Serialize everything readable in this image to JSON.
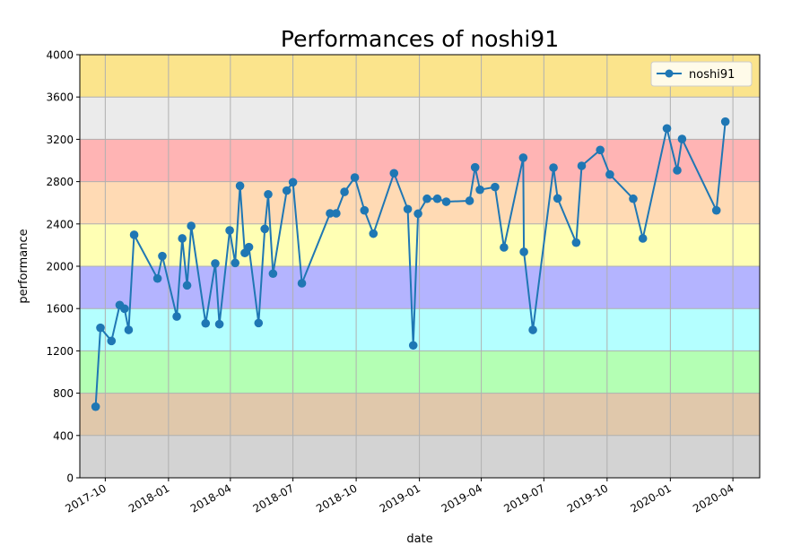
{
  "chart_data": {
    "type": "line",
    "title": "Performances of noshi91",
    "xlabel": "date",
    "ylabel": "performance",
    "ylim": [
      0,
      4000
    ],
    "xlim": [
      "2017-08-25",
      "2020-05-10"
    ],
    "grid": true,
    "legend_position": "top-right",
    "y_ticks": [
      0,
      400,
      800,
      1200,
      1600,
      2000,
      2400,
      2800,
      3200,
      3600,
      4000
    ],
    "x_ticks": [
      "2017-10",
      "2018-01",
      "2018-04",
      "2018-07",
      "2018-10",
      "2019-01",
      "2019-04",
      "2019-07",
      "2019-10",
      "2020-01",
      "2020-04"
    ],
    "bands": [
      {
        "from": 0,
        "to": 400,
        "color": "#d3d3d3"
      },
      {
        "from": 400,
        "to": 800,
        "color": "#e0c8ab"
      },
      {
        "from": 800,
        "to": 1200,
        "color": "#b4ffb4"
      },
      {
        "from": 1200,
        "to": 1600,
        "color": "#b4ffff"
      },
      {
        "from": 1600,
        "to": 2000,
        "color": "#b4b4ff"
      },
      {
        "from": 2000,
        "to": 2400,
        "color": "#ffffb4"
      },
      {
        "from": 2400,
        "to": 2800,
        "color": "#ffdab4"
      },
      {
        "from": 2800,
        "to": 3200,
        "color": "#ffb4b4"
      },
      {
        "from": 3200,
        "to": 3600,
        "color": "#ebebeb"
      },
      {
        "from": 3600,
        "to": 4000,
        "color": "#fbe48c"
      }
    ],
    "series": [
      {
        "name": "noshi91",
        "color": "#1f77b4",
        "x": [
          "2017-09-17",
          "2017-09-24",
          "2017-10-10",
          "2017-10-22",
          "2017-10-29",
          "2017-11-04",
          "2017-11-12",
          "2017-12-16",
          "2017-12-23",
          "2018-01-13",
          "2018-01-21",
          "2018-01-28",
          "2018-02-03",
          "2018-02-24",
          "2018-03-10",
          "2018-03-16",
          "2018-03-31",
          "2018-04-08",
          "2018-04-15",
          "2018-04-22",
          "2018-04-28",
          "2018-05-12",
          "2018-05-21",
          "2018-05-26",
          "2018-06-02",
          "2018-06-22",
          "2018-07-01",
          "2018-07-14",
          "2018-08-24",
          "2018-09-02",
          "2018-09-14",
          "2018-09-29",
          "2018-10-13",
          "2018-10-26",
          "2018-11-25",
          "2018-12-15",
          "2018-12-23",
          "2018-12-30",
          "2019-01-12",
          "2019-01-27",
          "2019-02-09",
          "2019-03-15",
          "2019-03-23",
          "2019-03-30",
          "2019-04-21",
          "2019-05-04",
          "2019-06-01",
          "2019-06-02",
          "2019-06-15",
          "2019-07-15",
          "2019-07-21",
          "2019-08-17",
          "2019-08-25",
          "2019-09-21",
          "2019-10-05",
          "2019-11-08",
          "2019-11-22",
          "2019-12-27",
          "2020-01-11",
          "2020-01-18",
          "2020-03-08",
          "2020-03-21"
        ],
        "y": [
          672,
          1418,
          1294,
          1633,
          1599,
          1398,
          2297,
          1884,
          2096,
          1525,
          2263,
          1819,
          2381,
          1460,
          2026,
          1452,
          2339,
          2031,
          2760,
          2125,
          2181,
          1463,
          2353,
          2680,
          1930,
          2715,
          2794,
          1839,
          2500,
          2500,
          2703,
          2839,
          2528,
          2308,
          2879,
          2540,
          1252,
          2497,
          2638,
          2638,
          2610,
          2619,
          2935,
          2723,
          2749,
          2178,
          3026,
          2136,
          1398,
          2932,
          2641,
          2223,
          2949,
          3099,
          2867,
          2638,
          2263,
          3303,
          2907,
          3203,
          2528,
          3367
        ]
      }
    ]
  }
}
